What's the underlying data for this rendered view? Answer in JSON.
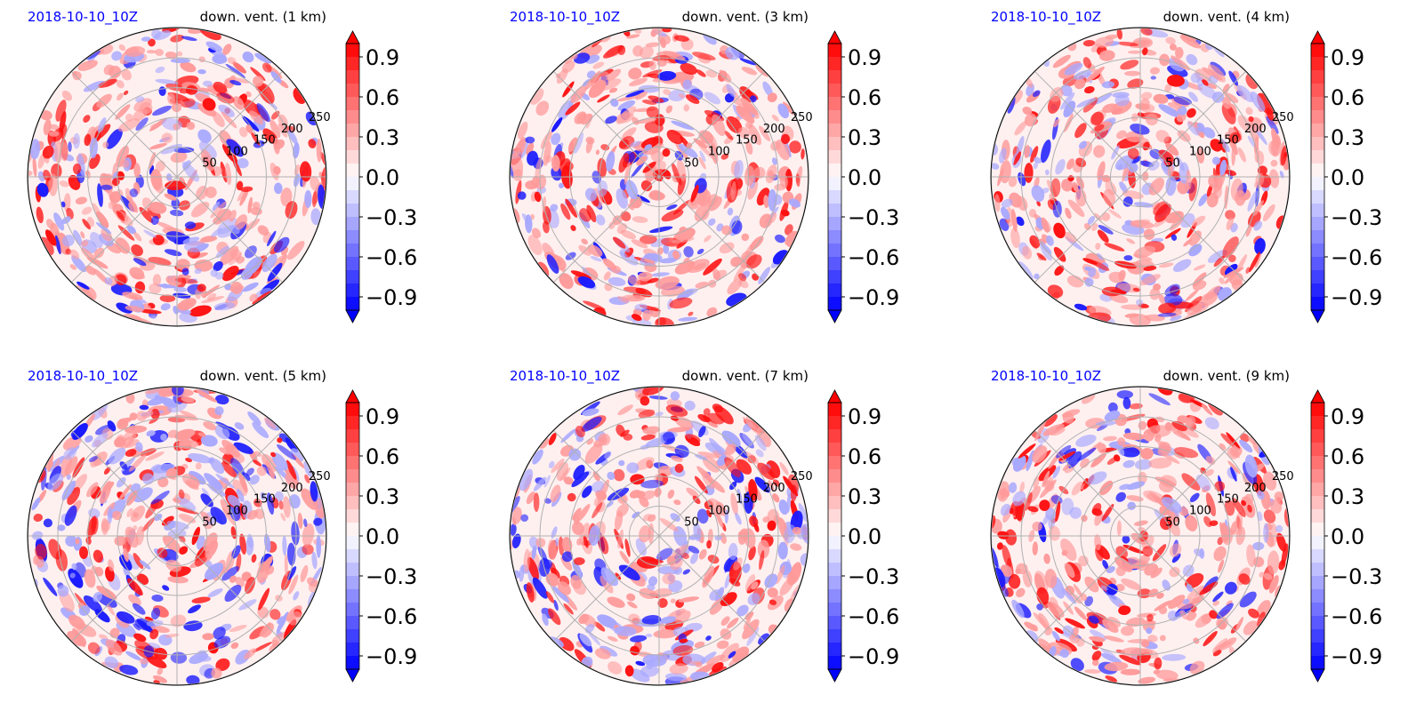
{
  "colors": {
    "positive": "#ff0000",
    "negative": "#0000ff",
    "neutral": "#ffffff",
    "date_text": "#0000ff",
    "title_text": "#000000",
    "grid": "#b0b0b0"
  },
  "chart_data": [
    {
      "type": "heatmap",
      "projection": "polar",
      "date": "2018-10-10_10Z",
      "title": "down. vent. (1 km)",
      "radial_ticks": [
        "50",
        "100",
        "150",
        "200",
        "250"
      ],
      "colorbar": {
        "ticks": [
          "0.9",
          "0.6",
          "0.3",
          "0.0",
          "−0.3",
          "−0.6",
          "−0.9"
        ],
        "range": [
          -1.0,
          1.0
        ],
        "extend": "both",
        "levels": 20,
        "cmap": "bwr"
      },
      "grid": true
    },
    {
      "type": "heatmap",
      "projection": "polar",
      "date": "2018-10-10_10Z",
      "title": "down. vent. (3 km)",
      "radial_ticks": [
        "50",
        "100",
        "150",
        "200",
        "250"
      ],
      "colorbar": {
        "ticks": [
          "0.9",
          "0.6",
          "0.3",
          "0.0",
          "−0.3",
          "−0.6",
          "−0.9"
        ],
        "range": [
          -1.0,
          1.0
        ],
        "extend": "both",
        "levels": 20,
        "cmap": "bwr"
      },
      "grid": true
    },
    {
      "type": "heatmap",
      "projection": "polar",
      "date": "2018-10-10_10Z",
      "title": "down. vent. (4 km)",
      "radial_ticks": [
        "50",
        "100",
        "150",
        "200",
        "250"
      ],
      "colorbar": {
        "ticks": [
          "0.9",
          "0.6",
          "0.3",
          "0.0",
          "−0.3",
          "−0.6",
          "−0.9"
        ],
        "range": [
          -1.0,
          1.0
        ],
        "extend": "both",
        "levels": 20,
        "cmap": "bwr"
      },
      "grid": true
    },
    {
      "type": "heatmap",
      "projection": "polar",
      "date": "2018-10-10_10Z",
      "title": "down. vent. (5 km)",
      "radial_ticks": [
        "50",
        "100",
        "150",
        "200",
        "250"
      ],
      "colorbar": {
        "ticks": [
          "0.9",
          "0.6",
          "0.3",
          "0.0",
          "−0.3",
          "−0.6",
          "−0.9"
        ],
        "range": [
          -1.0,
          1.0
        ],
        "extend": "both",
        "levels": 20,
        "cmap": "bwr"
      },
      "grid": true
    },
    {
      "type": "heatmap",
      "projection": "polar",
      "date": "2018-10-10_10Z",
      "title": "down. vent. (7 km)",
      "radial_ticks": [
        "50",
        "100",
        "150",
        "200",
        "250"
      ],
      "colorbar": {
        "ticks": [
          "0.9",
          "0.6",
          "0.3",
          "0.0",
          "−0.3",
          "−0.6",
          "−0.9"
        ],
        "range": [
          -1.0,
          1.0
        ],
        "extend": "both",
        "levels": 20,
        "cmap": "bwr"
      },
      "grid": true
    },
    {
      "type": "heatmap",
      "projection": "polar",
      "date": "2018-10-10_10Z",
      "title": "down. vent. (9 km)",
      "radial_ticks": [
        "50",
        "100",
        "150",
        "200",
        "250"
      ],
      "colorbar": {
        "ticks": [
          "0.9",
          "0.6",
          "0.3",
          "0.0",
          "−0.3",
          "−0.6",
          "−0.9"
        ],
        "range": [
          -1.0,
          1.0
        ],
        "extend": "both",
        "levels": 20,
        "cmap": "bwr"
      },
      "grid": true
    }
  ]
}
